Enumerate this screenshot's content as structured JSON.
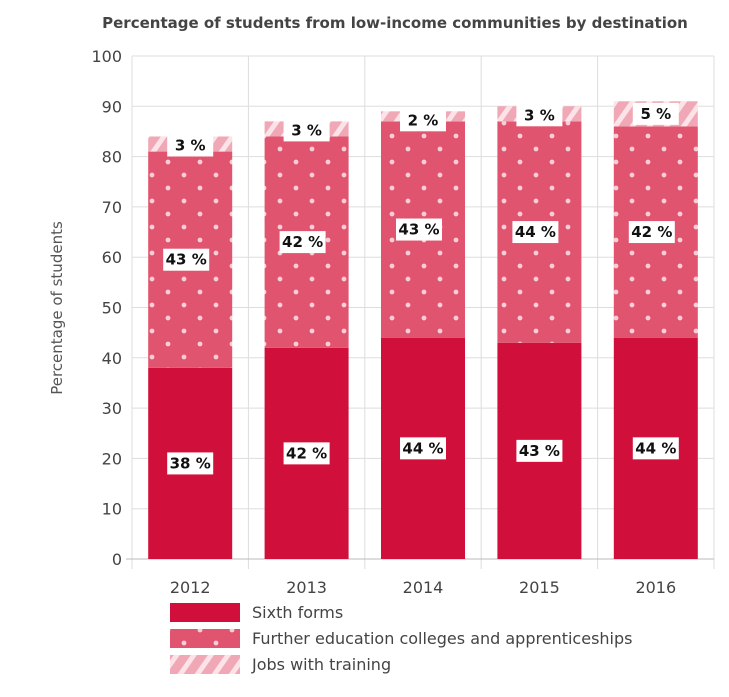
{
  "chart_data": {
    "type": "bar",
    "stacked": true,
    "title": "Percentage of students from low-income communities by destination",
    "ylabel": "Percentage of students",
    "xlabel": "",
    "ylim": [
      0,
      100
    ],
    "yticks": [
      0,
      10,
      20,
      30,
      40,
      50,
      60,
      70,
      80,
      90,
      100
    ],
    "grid": true,
    "categories": [
      "2012",
      "2013",
      "2014",
      "2015",
      "2016"
    ],
    "series": [
      {
        "name": "Sixth forms",
        "values": [
          38,
          42,
          44,
          43,
          44
        ],
        "labels": [
          "38 %",
          "42 %",
          "44 %",
          "43 %",
          "44 %"
        ],
        "color": "#d0103a",
        "pattern": "solid"
      },
      {
        "name": "Further education colleges and apprenticeships",
        "values": [
          43,
          42,
          43,
          44,
          42
        ],
        "labels": [
          "43 %",
          "42 %",
          "43 %",
          "44 %",
          "42 %"
        ],
        "color": "#e1546f",
        "pattern": "dots"
      },
      {
        "name": "Jobs with training",
        "values": [
          3,
          3,
          2,
          3,
          5
        ],
        "labels": [
          "3 %",
          "3 %",
          "2 %",
          "3 %",
          "5 %"
        ],
        "color": "#f0a8b6",
        "pattern": "stripes"
      }
    ],
    "legend_position": "bottom"
  }
}
